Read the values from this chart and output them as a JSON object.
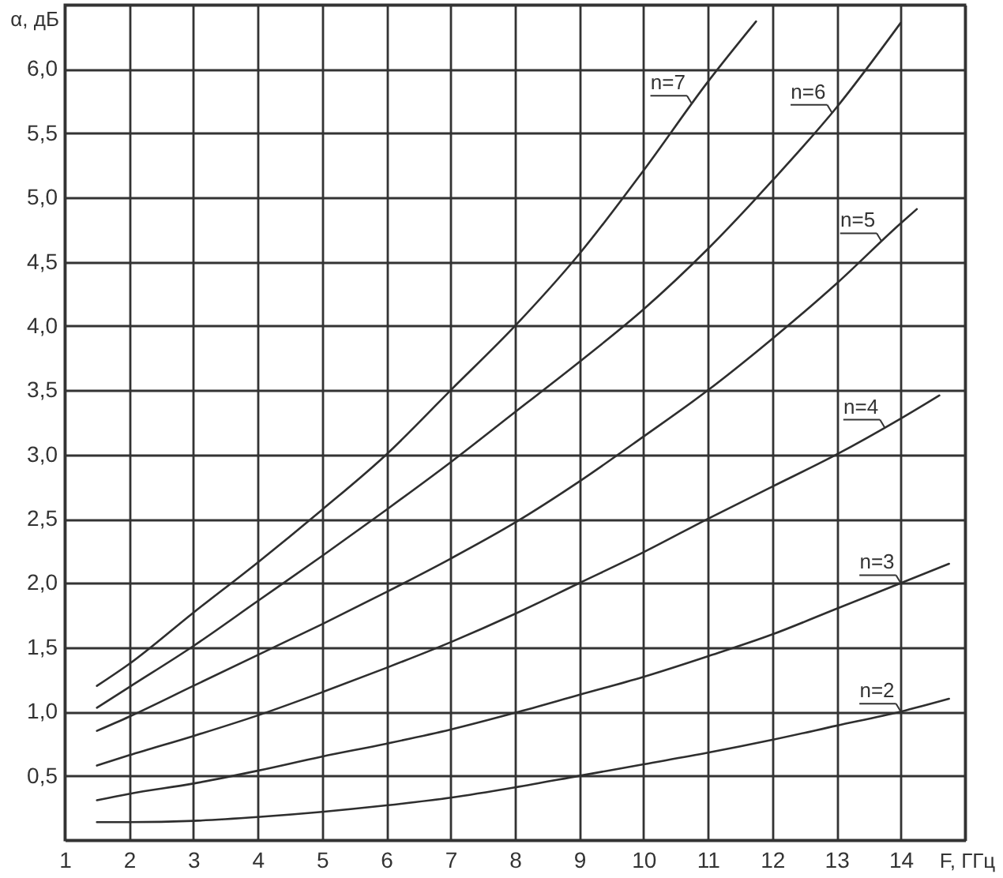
{
  "chart_data": {
    "type": "line",
    "xlabel": "F, ГГц",
    "ylabel": "α, дБ",
    "xlim": [
      1,
      15
    ],
    "ylim": [
      0,
      6.5
    ],
    "xticks": [
      1,
      2,
      3,
      4,
      5,
      6,
      7,
      8,
      9,
      10,
      11,
      12,
      13,
      14,
      {
        "value": 15,
        "label": null
      }
    ],
    "yticks": [
      {
        "value": 0,
        "label": null
      },
      {
        "value": 0.5,
        "label": "0,5"
      },
      {
        "value": 1,
        "label": "1,0"
      },
      {
        "value": 1.5,
        "label": "1,5"
      },
      {
        "value": 2,
        "label": "2,0"
      },
      {
        "value": 2.5,
        "label": "2,5"
      },
      {
        "value": 3,
        "label": "3,0"
      },
      {
        "value": 3.5,
        "label": "3,5"
      },
      {
        "value": 4,
        "label": "4,0"
      },
      {
        "value": 4.5,
        "label": "4,5"
      },
      {
        "value": 5,
        "label": "5,0"
      },
      {
        "value": 5.5,
        "label": "5,5"
      },
      {
        "value": 6,
        "label": "6,0"
      },
      {
        "value": 6.5,
        "label": null
      }
    ],
    "grid": true,
    "series": [
      {
        "color": "#2e2e2e",
        "x": [
          1.5,
          2,
          3,
          4,
          5,
          6,
          7,
          8,
          9,
          10,
          11,
          12,
          13,
          14,
          14.75
        ],
        "values": [
          0.14,
          0.14,
          0.15,
          0.18,
          0.22,
          0.27,
          0.33,
          0.41,
          0.5,
          0.59,
          0.68,
          0.78,
          0.89,
          1.0,
          1.1
        ]
      },
      {
        "color": "#2e2e2e",
        "x": [
          1.5,
          2,
          3,
          4,
          5,
          6,
          7,
          8,
          9,
          10,
          11,
          12,
          13,
          14,
          14.75
        ],
        "values": [
          0.31,
          0.36,
          0.44,
          0.54,
          0.65,
          0.75,
          0.86,
          0.99,
          1.13,
          1.27,
          1.43,
          1.6,
          1.8,
          2.0,
          2.15
        ]
      },
      {
        "color": "#2e2e2e",
        "x": [
          1.5,
          2,
          3,
          4,
          5,
          6,
          7,
          8,
          9,
          10,
          11,
          12,
          13,
          14,
          14.6
        ],
        "values": [
          0.58,
          0.66,
          0.81,
          0.97,
          1.15,
          1.34,
          1.54,
          1.76,
          2.0,
          2.24,
          2.5,
          2.75,
          3.0,
          3.28,
          3.46
        ]
      },
      {
        "color": "#2e2e2e",
        "x": [
          1.5,
          2,
          3,
          4,
          5,
          6,
          7,
          8,
          9,
          10,
          11,
          12,
          13,
          14,
          14.25
        ],
        "values": [
          0.85,
          0.96,
          1.2,
          1.44,
          1.68,
          1.93,
          2.19,
          2.47,
          2.79,
          3.14,
          3.5,
          3.9,
          4.33,
          4.8,
          4.91
        ]
      },
      {
        "color": "#2e2e2e",
        "x": [
          1.5,
          2,
          3,
          4,
          5,
          6,
          7,
          8,
          9,
          10,
          11,
          12,
          13,
          14
        ],
        "values": [
          1.03,
          1.19,
          1.51,
          1.86,
          2.21,
          2.57,
          2.94,
          3.33,
          3.72,
          4.13,
          4.6,
          5.13,
          5.7,
          6.36
        ]
      },
      {
        "color": "#2e2e2e",
        "x": [
          1.5,
          2,
          3,
          4,
          5,
          6,
          7,
          8,
          9,
          10,
          11,
          11.75
        ],
        "values": [
          1.2,
          1.37,
          1.77,
          2.16,
          2.57,
          3.0,
          3.5,
          4.0,
          4.56,
          5.21,
          5.9,
          6.37
        ]
      }
    ],
    "annotations": [
      {
        "text": "n=2",
        "x": 14,
        "y": 1.0
      },
      {
        "text": "n=3",
        "x": 14,
        "y": 2.0
      },
      {
        "text": "n=4",
        "x": 13.75,
        "y": 3.21
      },
      {
        "text": "n=5",
        "x": 13.7,
        "y": 4.66
      },
      {
        "text": "n=6",
        "x": 12.93,
        "y": 5.66
      },
      {
        "text": "n=7",
        "x": 10.75,
        "y": 5.73
      }
    ]
  }
}
